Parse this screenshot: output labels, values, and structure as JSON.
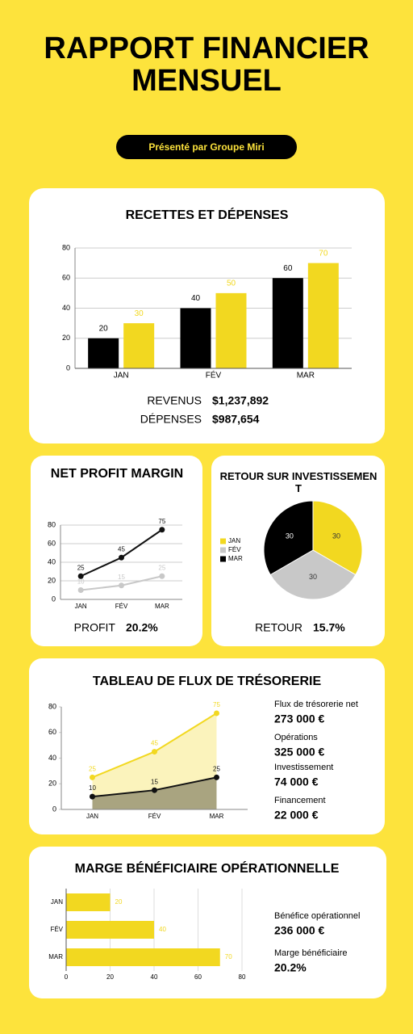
{
  "header": {
    "title": "RAPPORT FINANCIER MENSUEL",
    "subtitle": "Présenté par Groupe Miri"
  },
  "chart_data": [
    {
      "type": "bar",
      "title": "RECETTES ET DÉPENSES",
      "categories": [
        "JAN",
        "FÉV",
        "MAR"
      ],
      "series": [
        {
          "color": "#000000",
          "values": [
            20,
            40,
            60
          ]
        },
        {
          "color": "#f2d820",
          "values": [
            30,
            50,
            70
          ]
        }
      ],
      "ylim": [
        0,
        80
      ],
      "yticks": [
        0,
        20,
        40,
        60,
        80
      ],
      "grid": true,
      "summary": [
        {
          "label": "REVENUS",
          "value": "$1,237,892"
        },
        {
          "label": "DÉPENSES",
          "value": "$987,654"
        }
      ]
    },
    {
      "type": "line",
      "title": "NET PROFIT MARGIN",
      "categories": [
        "JAN",
        "FÉV",
        "MAR"
      ],
      "series": [
        {
          "color": "#111111",
          "values": [
            25,
            45,
            75
          ]
        },
        {
          "color": "#c8c8c8",
          "values": [
            10,
            15,
            25
          ]
        }
      ],
      "ylim": [
        0,
        80
      ],
      "yticks": [
        0,
        20,
        40,
        60,
        80
      ],
      "grid": true,
      "summary": [
        {
          "label": "PROFIT",
          "value": "20.2%"
        }
      ]
    },
    {
      "type": "pie",
      "title": "RETOUR SUR INVESTISSEMENT",
      "categories": [
        "JAN",
        "FÉV",
        "MAR"
      ],
      "values": [
        30,
        30,
        30
      ],
      "colors": [
        "#f2d820",
        "#c8c8c8",
        "#000000"
      ],
      "legend": "left",
      "summary": [
        {
          "label": "RETOUR",
          "value": "15.7%"
        }
      ]
    },
    {
      "type": "area",
      "title": "TABLEAU DE FLUX DE TRÉSORERIE",
      "categories": [
        "JAN",
        "FÉV",
        "MAR"
      ],
      "series": [
        {
          "color": "#f2d820",
          "values": [
            25,
            45,
            75
          ]
        },
        {
          "color": "#111111",
          "values": [
            10,
            15,
            25
          ]
        }
      ],
      "ylim": [
        0,
        80
      ],
      "yticks": [
        0,
        20,
        40,
        60,
        80
      ],
      "grid": false,
      "summary": [
        {
          "label": "Flux de trésorerie net",
          "value": "273 000 €"
        },
        {
          "label": "Opérations",
          "value": "325 000 €"
        },
        {
          "label": "Investissement",
          "value": "74 000 €"
        },
        {
          "label": "Financement",
          "value": "22 000 €"
        }
      ]
    },
    {
      "type": "hbar",
      "title": "MARGE BÉNÉFICIAIRE OPÉRATIONNELLE",
      "categories": [
        "JAN",
        "FÉV",
        "MAR"
      ],
      "values": [
        20,
        40,
        70
      ],
      "color": "#f2d820",
      "xlim": [
        0,
        80
      ],
      "xticks": [
        0,
        20,
        40,
        60,
        80
      ],
      "grid": true,
      "summary": [
        {
          "label": "Bénéfice opérationnel",
          "value": "236 000 €"
        },
        {
          "label": "Marge bénéficiaire",
          "value": "20.2%"
        }
      ]
    }
  ]
}
